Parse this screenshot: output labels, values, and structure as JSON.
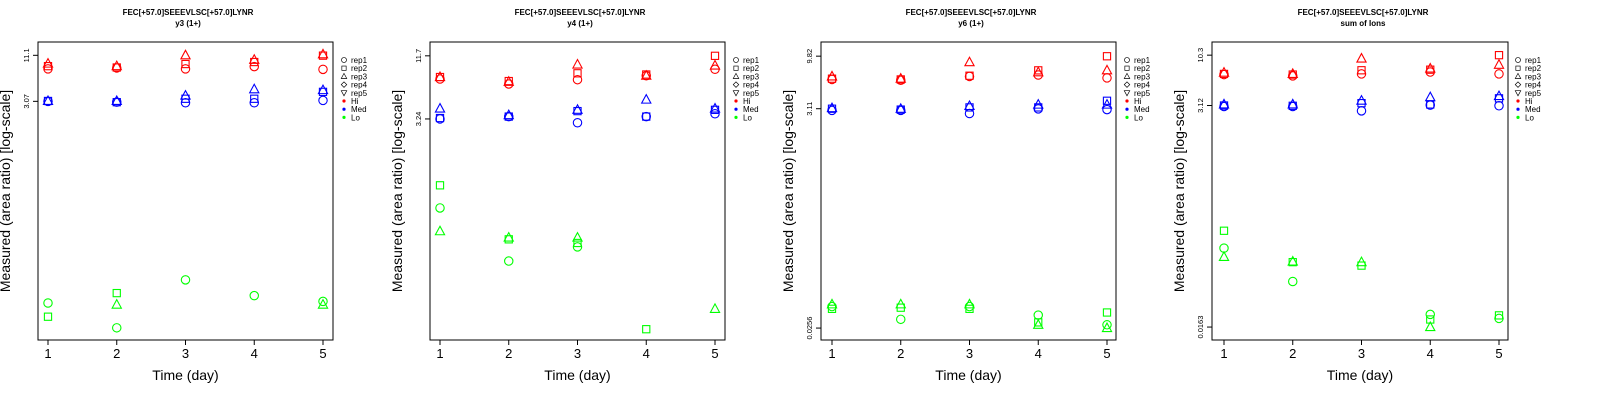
{
  "colors": {
    "Hi": "#ff0000",
    "Med": "#0000ff",
    "Lo": "#00ff00"
  },
  "legend": {
    "reps": [
      {
        "label": "rep1",
        "shape": "circle"
      },
      {
        "label": "rep2",
        "shape": "square"
      },
      {
        "label": "rep3",
        "shape": "triangle-up"
      },
      {
        "label": "rep4",
        "shape": "diamond"
      },
      {
        "label": "rep5",
        "shape": "triangle-down"
      }
    ],
    "groups": [
      "Hi",
      "Med",
      "Lo"
    ]
  },
  "chart_data": [
    {
      "type": "scatter",
      "title": "FEC[+57.0]SEEEVLSC[+57.0]LYNR",
      "subtitle": "y3 (1+)",
      "xlabel": "Time (day)",
      "ylabel": "Measured (area ratio) [log-scale]",
      "x_ticks": [
        1,
        2,
        3,
        4,
        5
      ],
      "y_scale": "log",
      "y_tick_labels": [
        "3.07",
        "11.1"
      ],
      "ylim": [
        0.0045,
        14
      ],
      "series": [
        {
          "group": "Hi",
          "rep": "rep1",
          "x": [
            1,
            2,
            3,
            4,
            5
          ],
          "y": [
            7.6,
            7.8,
            7.6,
            8.1,
            7.5
          ]
        },
        {
          "group": "Hi",
          "rep": "rep2",
          "x": [
            1,
            2,
            3,
            4,
            5
          ],
          "y": [
            8.2,
            7.9,
            8.7,
            9.2,
            11.0
          ]
        },
        {
          "group": "Hi",
          "rep": "rep3",
          "x": [
            1,
            2,
            3,
            4,
            5
          ],
          "y": [
            8.8,
            8.2,
            11.1,
            9.8,
            11.4
          ]
        },
        {
          "group": "Med",
          "rep": "rep1",
          "x": [
            1,
            2,
            3,
            4,
            5
          ],
          "y": [
            3.07,
            3.0,
            2.95,
            2.95,
            3.15
          ]
        },
        {
          "group": "Med",
          "rep": "rep2",
          "x": [
            1,
            2,
            3,
            4,
            5
          ],
          "y": [
            3.1,
            3.0,
            3.3,
            3.3,
            4.0
          ]
        },
        {
          "group": "Med",
          "rep": "rep3",
          "x": [
            1,
            2,
            3,
            4,
            5
          ],
          "y": [
            3.1,
            3.1,
            3.6,
            4.3,
            4.2
          ]
        },
        {
          "group": "Lo",
          "rep": "rep1",
          "x": [
            1,
            2,
            5
          ],
          "y": [
            0.011,
            0.0055,
            0.0115
          ]
        },
        {
          "group": "Lo",
          "rep": "rep2",
          "x": [
            1,
            2
          ],
          "y": [
            0.0075,
            0.0145
          ]
        },
        {
          "group": "Lo",
          "rep": "rep3",
          "x": [
            2,
            5
          ],
          "y": [
            0.0105,
            0.0105
          ]
        },
        {
          "group": "Lo",
          "rep": "rep1",
          "x": [
            3,
            4
          ],
          "y": [
            0.021,
            0.0135
          ]
        }
      ]
    },
    {
      "type": "scatter",
      "title": "FEC[+57.0]SEEEVLSC[+57.0]LYNR",
      "subtitle": "y4 (1+)",
      "xlabel": "Time (day)",
      "ylabel": "Measured (area ratio) [log-scale]",
      "x_ticks": [
        1,
        2,
        3,
        4,
        5
      ],
      "y_scale": "log",
      "y_tick_labels": [
        "3.24",
        "11.7"
      ],
      "ylim": [
        0.04,
        14
      ],
      "series": [
        {
          "group": "Hi",
          "rep": "rep1",
          "x": [
            1,
            2,
            3,
            4,
            5
          ],
          "y": [
            7.3,
            6.6,
            7.2,
            7.8,
            8.9
          ]
        },
        {
          "group": "Hi",
          "rep": "rep2",
          "x": [
            1,
            2,
            3,
            4,
            5
          ],
          "y": [
            7.6,
            7.0,
            8.2,
            8.0,
            11.7
          ]
        },
        {
          "group": "Hi",
          "rep": "rep3",
          "x": [
            1,
            2,
            3,
            4,
            5
          ],
          "y": [
            7.6,
            6.9,
            9.8,
            7.8,
            9.6
          ]
        },
        {
          "group": "Med",
          "rep": "rep1",
          "x": [
            1,
            2,
            3,
            4,
            5
          ],
          "y": [
            3.24,
            3.4,
            3.0,
            3.4,
            3.6
          ]
        },
        {
          "group": "Med",
          "rep": "rep2",
          "x": [
            1,
            2,
            3,
            4,
            5
          ],
          "y": [
            3.3,
            3.4,
            3.8,
            3.4,
            3.9
          ]
        },
        {
          "group": "Med",
          "rep": "rep3",
          "x": [
            1,
            2,
            3,
            4,
            5
          ],
          "y": [
            4.0,
            3.5,
            3.9,
            4.8,
            4.0
          ]
        },
        {
          "group": "Lo",
          "rep": "rep1",
          "x": [
            1,
            2,
            3
          ],
          "y": [
            0.53,
            0.18,
            0.24
          ]
        },
        {
          "group": "Lo",
          "rep": "rep2",
          "x": [
            1,
            2,
            3,
            4
          ],
          "y": [
            0.84,
            0.28,
            0.26,
            0.045
          ]
        },
        {
          "group": "Lo",
          "rep": "rep3",
          "x": [
            1,
            2,
            3,
            5
          ],
          "y": [
            0.33,
            0.29,
            0.29,
            0.068
          ]
        }
      ]
    },
    {
      "type": "scatter",
      "title": "FEC[+57.0]SEEEVLSC[+57.0]LYNR",
      "subtitle": "y6 (1+)",
      "xlabel": "Time (day)",
      "ylabel": "Measured (area ratio) [log-scale]",
      "x_ticks": [
        1,
        2,
        3,
        4,
        5
      ],
      "y_scale": "log",
      "y_tick_labels": [
        "0.0256",
        "3.11",
        "9.82"
      ],
      "ylim": [
        0.022,
        12
      ],
      "series": [
        {
          "group": "Hi",
          "rep": "rep1",
          "x": [
            1,
            2,
            3,
            4,
            5
          ],
          "y": [
            5.9,
            5.8,
            6.3,
            6.5,
            6.1
          ]
        },
        {
          "group": "Hi",
          "rep": "rep2",
          "x": [
            1,
            2,
            3,
            4,
            5
          ],
          "y": [
            6.0,
            5.9,
            6.4,
            7.2,
            9.8
          ]
        },
        {
          "group": "Hi",
          "rep": "rep3",
          "x": [
            1,
            2,
            3,
            4,
            5
          ],
          "y": [
            6.3,
            6.0,
            8.6,
            6.9,
            7.2
          ]
        },
        {
          "group": "Med",
          "rep": "rep1",
          "x": [
            1,
            2,
            3,
            4,
            5
          ],
          "y": [
            3.0,
            3.0,
            2.8,
            3.1,
            3.05
          ]
        },
        {
          "group": "Med",
          "rep": "rep2",
          "x": [
            1,
            2,
            3,
            4,
            5
          ],
          "y": [
            3.11,
            3.05,
            3.2,
            3.2,
            3.7
          ]
        },
        {
          "group": "Med",
          "rep": "rep3",
          "x": [
            1,
            2,
            3,
            4,
            5
          ],
          "y": [
            3.15,
            3.1,
            3.3,
            3.4,
            3.4
          ]
        },
        {
          "group": "Lo",
          "rep": "rep1",
          "x": [
            1,
            2,
            3,
            4,
            5
          ],
          "y": [
            0.041,
            0.031,
            0.041,
            0.034,
            0.0275
          ]
        },
        {
          "group": "Lo",
          "rep": "rep2",
          "x": [
            1,
            2,
            3,
            4,
            5
          ],
          "y": [
            0.039,
            0.04,
            0.039,
            0.029,
            0.036
          ]
        },
        {
          "group": "Lo",
          "rep": "rep3",
          "x": [
            1,
            2,
            3,
            4,
            5
          ],
          "y": [
            0.043,
            0.043,
            0.043,
            0.0275,
            0.0256
          ]
        }
      ]
    },
    {
      "type": "scatter",
      "title": "FEC[+57.0]SEEEVLSC[+57.0]LYNR",
      "subtitle": "sum of Ions",
      "xlabel": "Time (day)",
      "ylabel": "Measured (area ratio) [log-scale]",
      "x_ticks": [
        1,
        2,
        3,
        4,
        5
      ],
      "y_scale": "log",
      "y_tick_labels": [
        "0.0163",
        "3.12",
        "10.3"
      ],
      "ylim": [
        0.0135,
        12.5
      ],
      "series": [
        {
          "group": "Hi",
          "rep": "rep1",
          "x": [
            1,
            2,
            3,
            4,
            5
          ],
          "y": [
            6.5,
            6.3,
            6.6,
            6.9,
            6.6
          ]
        },
        {
          "group": "Hi",
          "rep": "rep2",
          "x": [
            1,
            2,
            3,
            4,
            5
          ],
          "y": [
            6.6,
            6.5,
            7.2,
            7.3,
            10.3
          ]
        },
        {
          "group": "Hi",
          "rep": "rep3",
          "x": [
            1,
            2,
            3,
            4,
            5
          ],
          "y": [
            6.8,
            6.6,
            9.5,
            7.5,
            8.2
          ]
        },
        {
          "group": "Med",
          "rep": "rep1",
          "x": [
            1,
            2,
            3,
            4,
            5
          ],
          "y": [
            3.05,
            3.05,
            2.75,
            3.15,
            3.1
          ]
        },
        {
          "group": "Med",
          "rep": "rep2",
          "x": [
            1,
            2,
            3,
            4,
            5
          ],
          "y": [
            3.12,
            3.1,
            3.3,
            3.2,
            3.7
          ]
        },
        {
          "group": "Med",
          "rep": "rep3",
          "x": [
            1,
            2,
            3,
            4,
            5
          ],
          "y": [
            3.2,
            3.2,
            3.5,
            3.8,
            3.9
          ]
        },
        {
          "group": "Lo",
          "rep": "rep1",
          "x": [
            1,
            2,
            4,
            5
          ],
          "y": [
            0.106,
            0.048,
            0.022,
            0.02
          ]
        },
        {
          "group": "Lo",
          "rep": "rep2",
          "x": [
            1,
            2,
            3,
            4,
            5
          ],
          "y": [
            0.16,
            0.076,
            0.07,
            0.0195,
            0.0215
          ]
        },
        {
          "group": "Lo",
          "rep": "rep3",
          "x": [
            1,
            2,
            3,
            4
          ],
          "y": [
            0.086,
            0.077,
            0.076,
            0.0163
          ]
        }
      ]
    }
  ]
}
